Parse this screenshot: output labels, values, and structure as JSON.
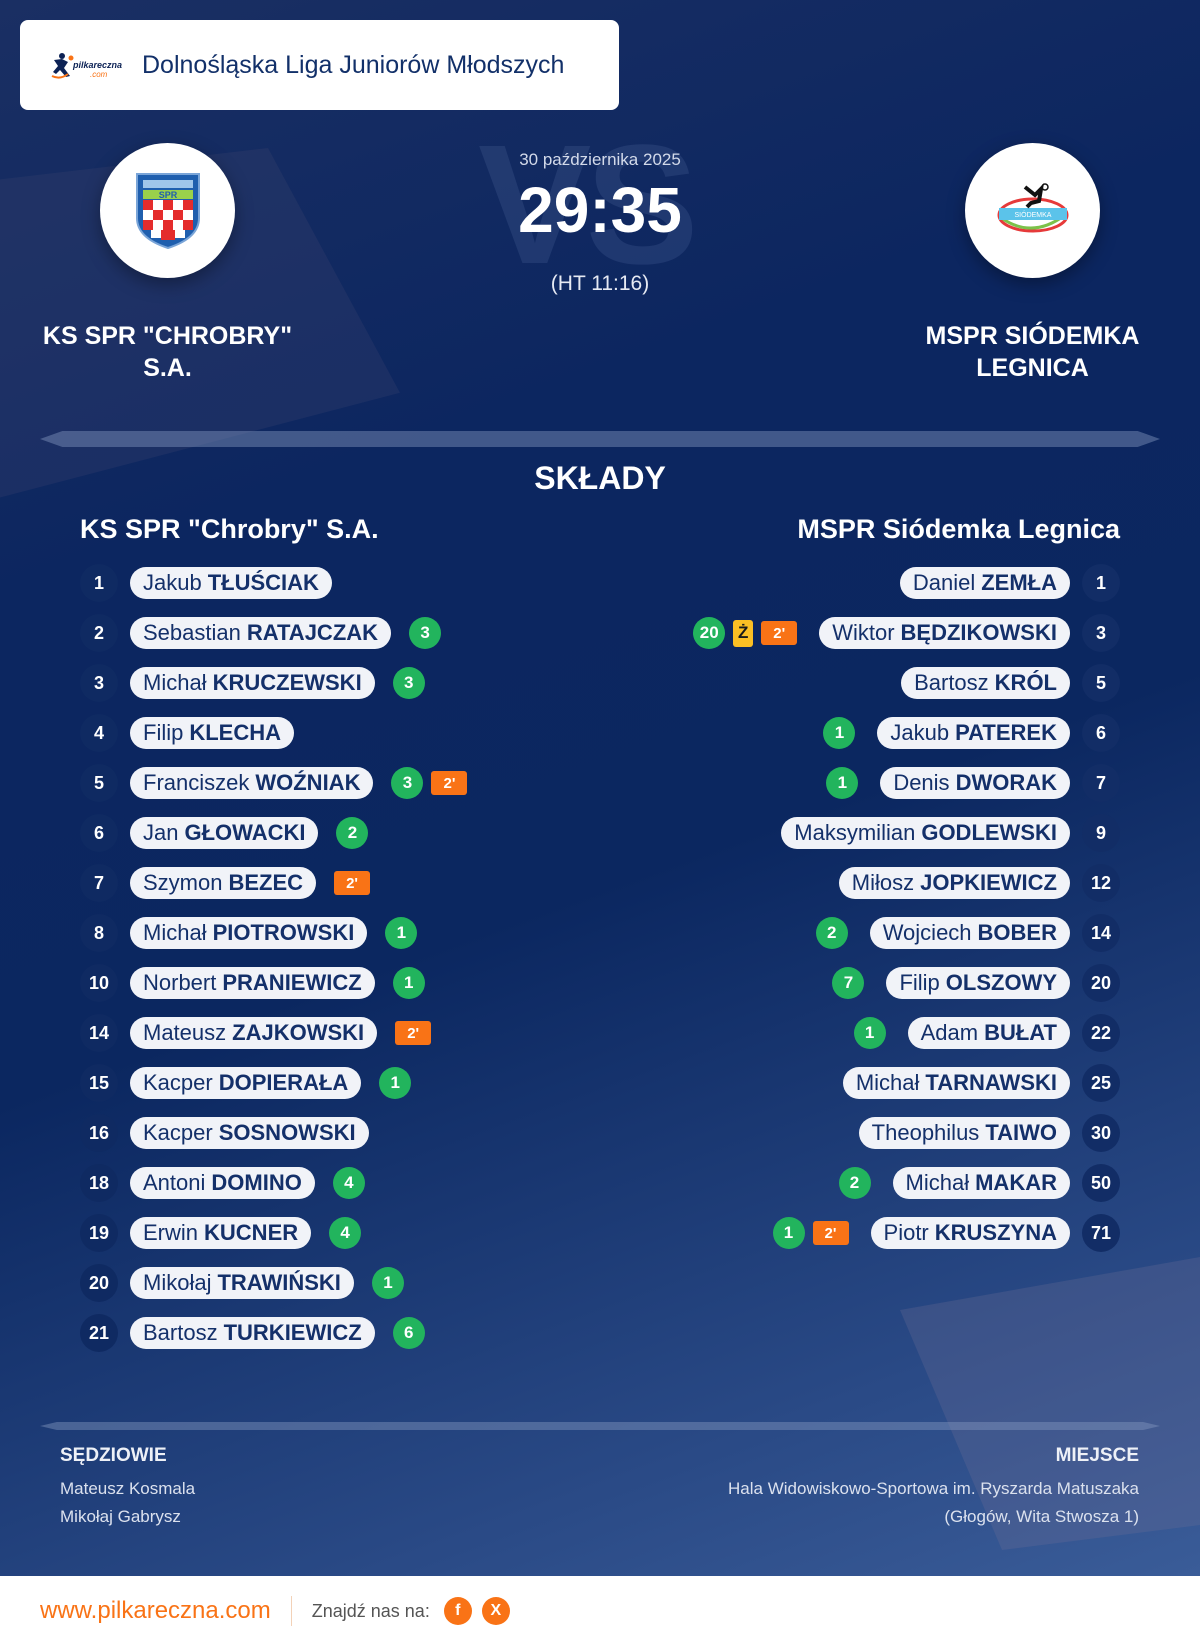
{
  "header": {
    "logo_alt": "pilkareczna.com",
    "league": "Dolnośląska Liga Juniorów Młodszych"
  },
  "match": {
    "date": "30 października 2025",
    "score": "29:35",
    "halftime": "(HT 11:16)",
    "vs_watermark": "VS"
  },
  "home": {
    "name_upper": "KS SPR \"CHROBRY\" S.A.",
    "name": "KS SPR \"Chrobry\" S.A."
  },
  "away": {
    "name_upper": "MSPR SIÓDEMKA LEGNICA",
    "name": "MSPR Siódemka Legnica"
  },
  "lineups_title": "SKŁADY",
  "home_players": [
    {
      "num": "1",
      "first": "Jakub",
      "last": "TŁUŚCIAK",
      "goals": "",
      "yellow": "",
      "susp": ""
    },
    {
      "num": "2",
      "first": "Sebastian",
      "last": "RATAJCZAK",
      "goals": "3",
      "yellow": "",
      "susp": ""
    },
    {
      "num": "3",
      "first": "Michał",
      "last": "KRUCZEWSKI",
      "goals": "3",
      "yellow": "",
      "susp": ""
    },
    {
      "num": "4",
      "first": "Filip",
      "last": "KLECHA",
      "goals": "",
      "yellow": "",
      "susp": ""
    },
    {
      "num": "5",
      "first": "Franciszek",
      "last": "WOŹNIAK",
      "goals": "3",
      "yellow": "",
      "susp": "2'"
    },
    {
      "num": "6",
      "first": "Jan",
      "last": "GŁOWACKI",
      "goals": "2",
      "yellow": "",
      "susp": ""
    },
    {
      "num": "7",
      "first": "Szymon",
      "last": "BEZEC",
      "goals": "",
      "yellow": "",
      "susp": "2'"
    },
    {
      "num": "8",
      "first": "Michał",
      "last": "PIOTROWSKI",
      "goals": "1",
      "yellow": "",
      "susp": ""
    },
    {
      "num": "10",
      "first": "Norbert",
      "last": "PRANIEWICZ",
      "goals": "1",
      "yellow": "",
      "susp": ""
    },
    {
      "num": "14",
      "first": "Mateusz",
      "last": "ZAJKOWSKI",
      "goals": "",
      "yellow": "",
      "susp": "2'"
    },
    {
      "num": "15",
      "first": "Kacper",
      "last": "DOPIERAŁA",
      "goals": "1",
      "yellow": "",
      "susp": ""
    },
    {
      "num": "16",
      "first": "Kacper",
      "last": "SOSNOWSKI",
      "goals": "",
      "yellow": "",
      "susp": ""
    },
    {
      "num": "18",
      "first": "Antoni",
      "last": "DOMINO",
      "goals": "4",
      "yellow": "",
      "susp": ""
    },
    {
      "num": "19",
      "first": "Erwin",
      "last": "KUCNER",
      "goals": "4",
      "yellow": "",
      "susp": ""
    },
    {
      "num": "20",
      "first": "Mikołaj",
      "last": "TRAWIŃSKI",
      "goals": "1",
      "yellow": "",
      "susp": ""
    },
    {
      "num": "21",
      "first": "Bartosz",
      "last": "TURKIEWICZ",
      "goals": "6",
      "yellow": "",
      "susp": ""
    }
  ],
  "away_players": [
    {
      "num": "1",
      "first": "Daniel",
      "last": "ZEMŁA",
      "goals": "",
      "yellow": "",
      "susp": ""
    },
    {
      "num": "3",
      "first": "Wiktor",
      "last": "BĘDZIKOWSKI",
      "goals": "20",
      "yellow": "Ż",
      "susp": "2'"
    },
    {
      "num": "5",
      "first": "Bartosz",
      "last": "KRÓL",
      "goals": "",
      "yellow": "",
      "susp": ""
    },
    {
      "num": "6",
      "first": "Jakub",
      "last": "PATEREK",
      "goals": "1",
      "yellow": "",
      "susp": ""
    },
    {
      "num": "7",
      "first": "Denis",
      "last": "DWORAK",
      "goals": "1",
      "yellow": "",
      "susp": ""
    },
    {
      "num": "9",
      "first": "Maksymilian",
      "last": "GODLEWSKI",
      "goals": "",
      "yellow": "",
      "susp": ""
    },
    {
      "num": "12",
      "first": "Miłosz",
      "last": "JOPKIEWICZ",
      "goals": "",
      "yellow": "",
      "susp": ""
    },
    {
      "num": "14",
      "first": "Wojciech",
      "last": "BOBER",
      "goals": "2",
      "yellow": "",
      "susp": ""
    },
    {
      "num": "20",
      "first": "Filip",
      "last": "OLSZOWY",
      "goals": "7",
      "yellow": "",
      "susp": ""
    },
    {
      "num": "22",
      "first": "Adam",
      "last": "BUŁAT",
      "goals": "1",
      "yellow": "",
      "susp": ""
    },
    {
      "num": "25",
      "first": "Michał",
      "last": "TARNAWSKI",
      "goals": "",
      "yellow": "",
      "susp": ""
    },
    {
      "num": "30",
      "first": "Theophilus",
      "last": "TAIWO",
      "goals": "",
      "yellow": "",
      "susp": ""
    },
    {
      "num": "50",
      "first": "Michał",
      "last": "MAKAR",
      "goals": "2",
      "yellow": "",
      "susp": ""
    },
    {
      "num": "71",
      "first": "Piotr",
      "last": "KRUSZYNA",
      "goals": "1",
      "yellow": "",
      "susp": "2'"
    }
  ],
  "referees": {
    "title": "SĘDZIOWIE",
    "names": [
      "Mateusz Kosmala",
      "Mikołaj Gabrysz"
    ]
  },
  "venue": {
    "title": "MIEJSCE",
    "name": "Hala Widowiskowo-Sportowa im. Ryszarda Matuszaka",
    "address": "(Głogów, Wita Stwosza 1)"
  },
  "footer": {
    "site": "www.pilkareczna.com",
    "find_us": "Znajdź nas na:",
    "social": [
      {
        "icon": "facebook-icon",
        "glyph": "f"
      },
      {
        "icon": "x-icon",
        "glyph": "X"
      }
    ]
  },
  "colors": {
    "background": "#0b2760",
    "goal_badge": "#22b45d",
    "suspension_badge": "#f97316",
    "yellow_card": "#fbbf24",
    "brand_orange": "#f97316",
    "pill_text": "#14306a"
  }
}
